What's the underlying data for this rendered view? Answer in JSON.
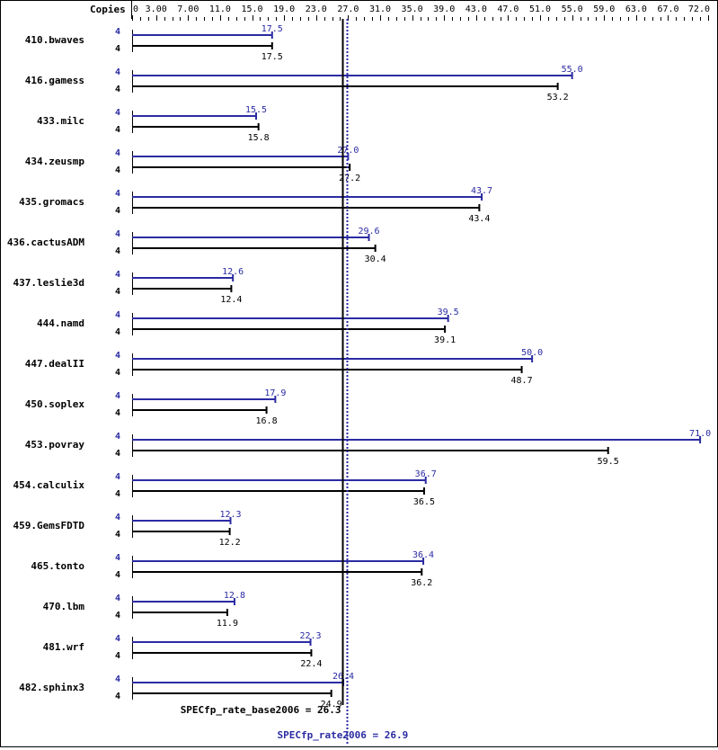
{
  "chart_data": {
    "type": "bar",
    "orientation": "horizontal",
    "title": "",
    "xlabel": "",
    "ylabel": "",
    "axis_header": "Copies",
    "xlim": [
      0,
      72
    ],
    "tick_labels": [
      "0",
      "3.00",
      "7.00",
      "11.0",
      "15.0",
      "19.0",
      "23.0",
      "27.0",
      "31.0",
      "35.0",
      "39.0",
      "43.0",
      "47.0",
      "51.0",
      "55.0",
      "59.0",
      "63.0",
      "67.0",
      "72.0"
    ],
    "tick_values": [
      0,
      3,
      7,
      11,
      15,
      19,
      23,
      27,
      31,
      35,
      39,
      43,
      47,
      51,
      55,
      59,
      63,
      67,
      72
    ],
    "categories": [
      "410.bwaves",
      "416.gamess",
      "433.milc",
      "434.zeusmp",
      "435.gromacs",
      "436.cactusADM",
      "437.leslie3d",
      "444.namd",
      "447.dealII",
      "450.soplex",
      "453.povray",
      "454.calculix",
      "459.GemsFDTD",
      "465.tonto",
      "470.lbm",
      "481.wrf",
      "482.sphinx3"
    ],
    "series": [
      {
        "name": "peak",
        "color": "#2b2ba3",
        "copies": [
          4,
          4,
          4,
          4,
          4,
          4,
          4,
          4,
          4,
          4,
          4,
          4,
          4,
          4,
          4,
          4,
          4
        ],
        "values": [
          17.5,
          55.0,
          15.5,
          27.0,
          43.7,
          29.6,
          12.6,
          39.5,
          50.0,
          17.9,
          71.0,
          36.7,
          12.3,
          36.4,
          12.8,
          22.3,
          26.4
        ]
      },
      {
        "name": "base",
        "color": "#000000",
        "copies": [
          4,
          4,
          4,
          4,
          4,
          4,
          4,
          4,
          4,
          4,
          4,
          4,
          4,
          4,
          4,
          4,
          4
        ],
        "values": [
          17.5,
          53.2,
          15.8,
          27.2,
          43.4,
          30.4,
          12.4,
          39.1,
          48.7,
          16.8,
          59.5,
          36.5,
          12.2,
          36.2,
          11.9,
          22.4,
          24.9
        ]
      }
    ],
    "reference_lines": [
      {
        "name": "base",
        "label": "SPECfp_rate_base2006 = 26.3",
        "value": 26.3,
        "style": "solid",
        "color": "#000000"
      },
      {
        "name": "peak",
        "label": "SPECfp_rate2006 = 26.9",
        "value": 26.9,
        "style": "dotted",
        "color": "#2b2ba3"
      }
    ],
    "grid": false,
    "legend": "none"
  }
}
